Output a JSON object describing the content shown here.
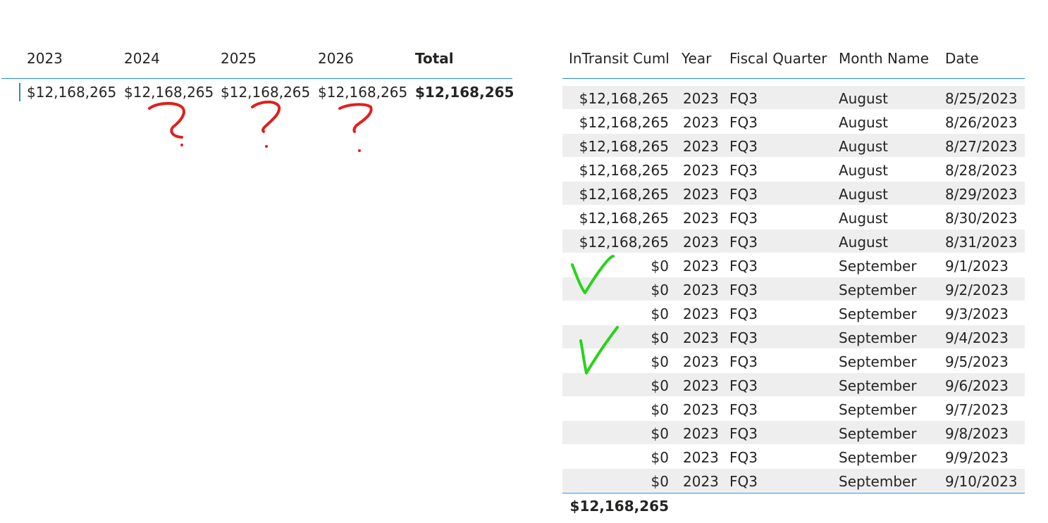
{
  "matrix": {
    "headers": [
      "2023",
      "2024",
      "2025",
      "2026",
      "Total"
    ],
    "values": [
      "$12,168,265",
      "$12,168,265",
      "$12,168,265",
      "$12,168,265",
      "$12,168,265"
    ]
  },
  "table": {
    "headers": [
      "InTransit Cuml",
      "Year",
      "Fiscal Quarter",
      "Month Name",
      "Date"
    ],
    "rows": [
      [
        "$12,168,265",
        "2023",
        "FQ3",
        "August",
        "8/25/2023"
      ],
      [
        "$12,168,265",
        "2023",
        "FQ3",
        "August",
        "8/26/2023"
      ],
      [
        "$12,168,265",
        "2023",
        "FQ3",
        "August",
        "8/27/2023"
      ],
      [
        "$12,168,265",
        "2023",
        "FQ3",
        "August",
        "8/28/2023"
      ],
      [
        "$12,168,265",
        "2023",
        "FQ3",
        "August",
        "8/29/2023"
      ],
      [
        "$12,168,265",
        "2023",
        "FQ3",
        "August",
        "8/30/2023"
      ],
      [
        "$12,168,265",
        "2023",
        "FQ3",
        "August",
        "8/31/2023"
      ],
      [
        "$0",
        "2023",
        "FQ3",
        "September",
        "9/1/2023"
      ],
      [
        "$0",
        "2023",
        "FQ3",
        "September",
        "9/2/2023"
      ],
      [
        "$0",
        "2023",
        "FQ3",
        "September",
        "9/3/2023"
      ],
      [
        "$0",
        "2023",
        "FQ3",
        "September",
        "9/4/2023"
      ],
      [
        "$0",
        "2023",
        "FQ3",
        "September",
        "9/5/2023"
      ],
      [
        "$0",
        "2023",
        "FQ3",
        "September",
        "9/6/2023"
      ],
      [
        "$0",
        "2023",
        "FQ3",
        "September",
        "9/7/2023"
      ],
      [
        "$0",
        "2023",
        "FQ3",
        "September",
        "9/8/2023"
      ],
      [
        "$0",
        "2023",
        "FQ3",
        "September",
        "9/9/2023"
      ],
      [
        "$0",
        "2023",
        "FQ3",
        "September",
        "9/10/2023"
      ]
    ],
    "total": "$12,168,265"
  },
  "colors": {
    "accent_line": "#2b8ad6",
    "row_shade": "#eeeeee",
    "question_marks": "#e0201c",
    "checkmarks": "#28d31a"
  },
  "annotations": {
    "question_marks": "3 red hand-drawn question marks under 2024, 2025, 2026",
    "checkmarks": "2 green hand-drawn checkmarks beside September rows"
  }
}
